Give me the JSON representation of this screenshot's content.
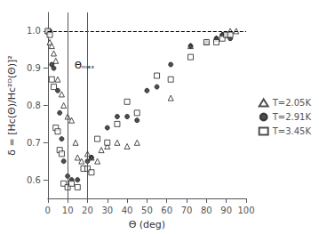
{
  "chart_data": {
    "type": "scatter",
    "xlabel": "Θ (deg)",
    "ylabel": "δ = [Hc(Θ)/Hc²ᴰ(Θ)]²",
    "xlim": [
      0,
      100
    ],
    "xticks": [
      0,
      10,
      20,
      30,
      40,
      50,
      60,
      70,
      80,
      90,
      100
    ],
    "ylim": [
      0.55,
      1.05
    ],
    "yticks": [
      0.6,
      0.7,
      0.8,
      0.9,
      {
        "value": 1.0,
        "label": "1.0"
      }
    ],
    "grid": false,
    "legend": "right",
    "hlines": [
      {
        "y": 1.0,
        "line_style": "dashed",
        "color": "#000000"
      }
    ],
    "vlines": [
      {
        "x": 10.0,
        "line_style": "solid",
        "color": "#555555"
      },
      {
        "x": 20.0,
        "line_style": "solid",
        "color": "#555555"
      }
    ],
    "annotations": [
      {
        "text": "Θₘₐₓ",
        "x": 13.5,
        "y": 0.895
      }
    ],
    "series": [
      {
        "name": "T=2.05K",
        "color": "#222222",
        "marker": "triangle_open",
        "x": [
          0,
          1,
          2,
          3,
          4,
          5,
          7,
          8,
          10,
          12,
          14,
          15,
          17,
          20,
          22,
          25,
          27,
          30,
          35,
          40,
          45,
          62,
          72,
          80,
          85,
          88,
          90,
          92,
          95
        ],
        "values": [
          1.0,
          0.97,
          0.96,
          0.94,
          0.92,
          0.87,
          0.83,
          0.8,
          0.77,
          0.76,
          0.7,
          0.66,
          0.65,
          0.67,
          0.66,
          0.65,
          0.68,
          0.69,
          0.7,
          0.69,
          0.7,
          0.82,
          0.96,
          0.97,
          0.98,
          0.99,
          0.99,
          1.0,
          1.0
        ]
      },
      {
        "name": "T=2.91K",
        "color": "#222222",
        "marker": "circle",
        "x": [
          0,
          1,
          2,
          3,
          5,
          6,
          7,
          8,
          10,
          12,
          15,
          20,
          22,
          30,
          35,
          40,
          45,
          50,
          55,
          62,
          72,
          80,
          85,
          88,
          90,
          92
        ],
        "values": [
          1.0,
          1.0,
          0.91,
          0.9,
          0.84,
          0.78,
          0.71,
          0.65,
          0.61,
          0.6,
          0.6,
          0.65,
          0.66,
          0.74,
          0.77,
          0.77,
          0.76,
          0.84,
          0.85,
          0.91,
          0.96,
          0.97,
          0.98,
          0.99,
          0.99,
          0.98
        ]
      },
      {
        "name": "T=3.45K",
        "color": "#222222",
        "marker": "square_open",
        "x": [
          0,
          1,
          2,
          3,
          4,
          5,
          6,
          7,
          8,
          10,
          12,
          15,
          18,
          20,
          22,
          25,
          30,
          35,
          40,
          45,
          55,
          62,
          72,
          80,
          85,
          88,
          90,
          92
        ],
        "values": [
          1.0,
          0.99,
          0.87,
          0.85,
          0.74,
          0.73,
          0.68,
          0.67,
          0.59,
          0.58,
          0.59,
          0.58,
          0.63,
          0.63,
          0.62,
          0.71,
          0.7,
          0.75,
          0.81,
          0.78,
          0.88,
          0.87,
          0.93,
          0.97,
          0.97,
          0.98,
          0.99,
          0.99
        ]
      }
    ]
  }
}
